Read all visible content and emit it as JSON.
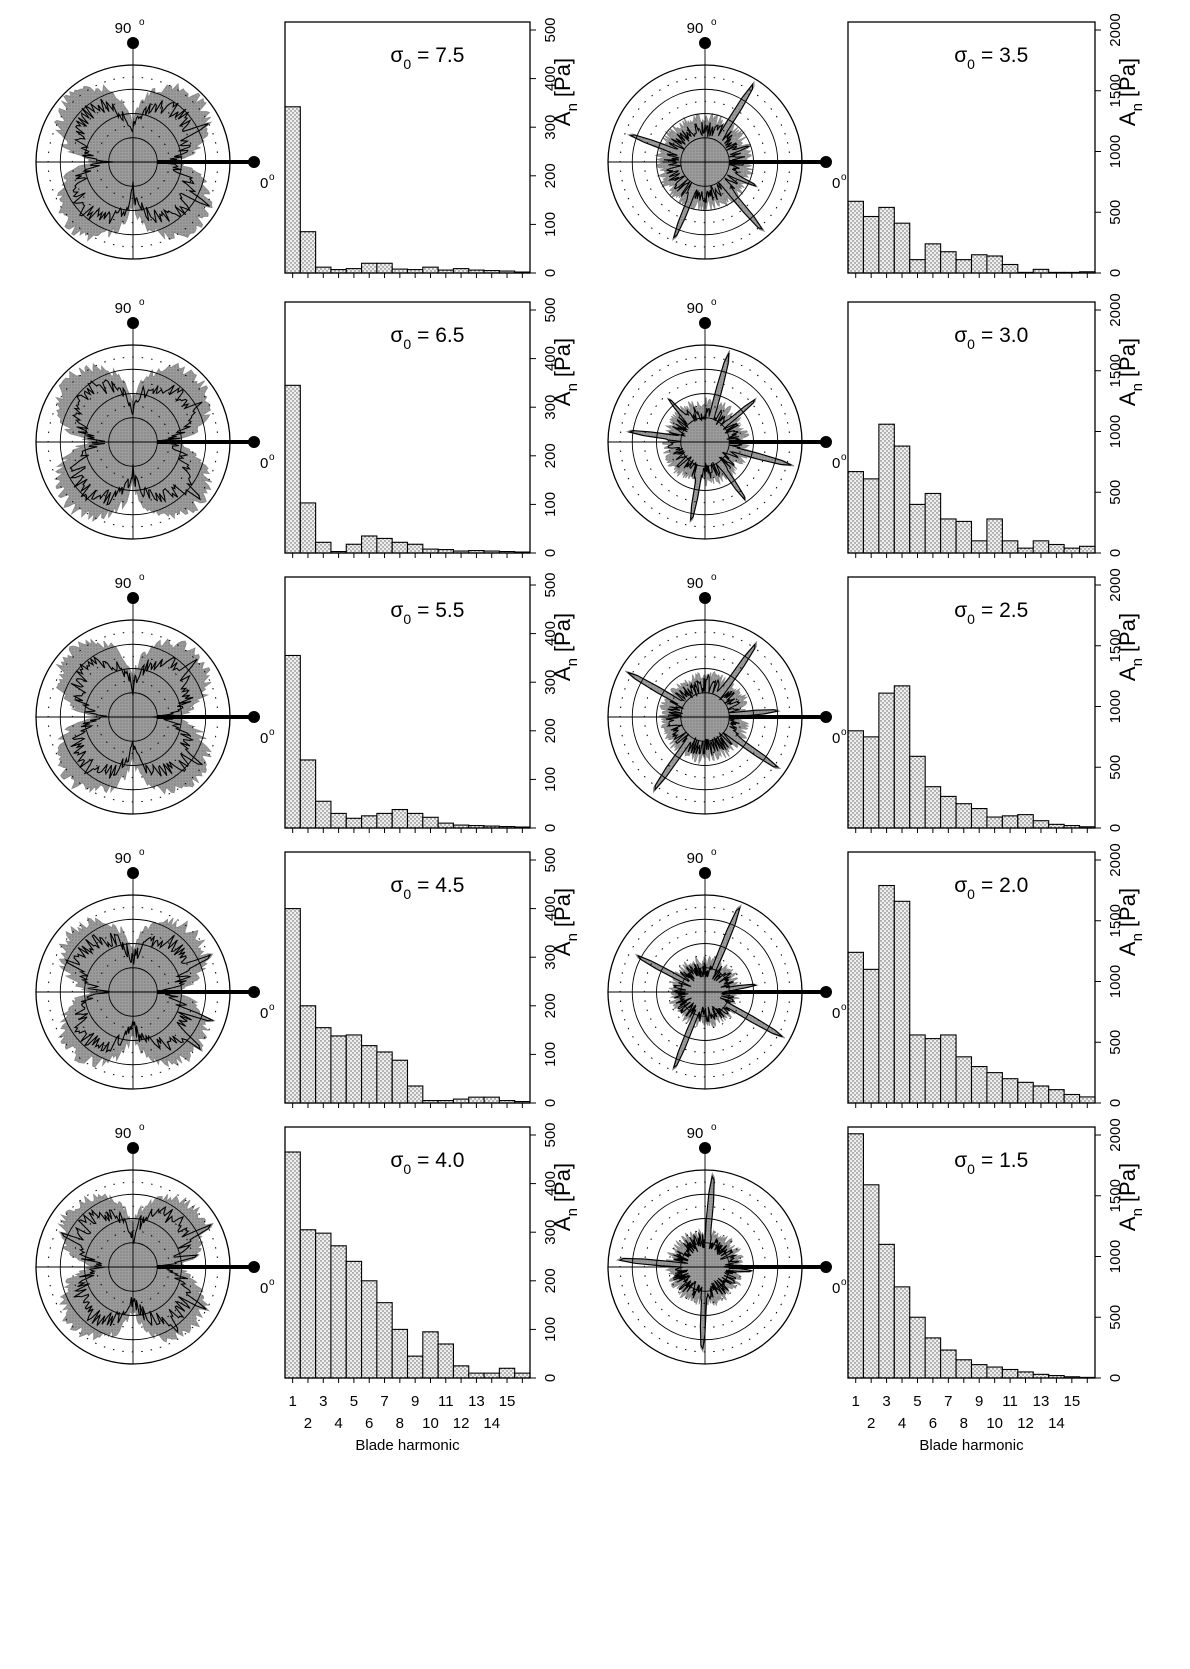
{
  "figure": {
    "xlabel": "Blade harmonic",
    "ylabel": "A",
    "ylabel_sub": "n",
    "ylabel_unit": "[Pa]",
    "polar_top_label": "90",
    "polar_right_label": "0",
    "degree_mark": "o",
    "sigma_symbol": "σ",
    "sigma_sub": "0",
    "x_ticks_odd": [
      "1",
      "3",
      "5",
      "7",
      "9",
      "11",
      "13",
      "15"
    ],
    "x_ticks_even": [
      "2",
      "4",
      "6",
      "8",
      "10",
      "12",
      "14"
    ]
  },
  "chart_data": [
    {
      "type": "bar",
      "sigma_label": "= 7.5",
      "categories": [
        1,
        2,
        3,
        4,
        5,
        6,
        7,
        8,
        9,
        10,
        11,
        12,
        13,
        14,
        15,
        16
      ],
      "values": [
        342,
        85,
        12,
        7,
        9,
        20,
        20,
        8,
        7,
        12,
        6,
        9,
        6,
        5,
        4,
        2
      ],
      "ylim": [
        0,
        500
      ],
      "yticks": [
        "0",
        "100",
        "200",
        "300",
        "400",
        "500"
      ],
      "polar": {
        "spikes": [
          [
            27,
            0.9
          ],
          [
            -30,
            0.94
          ],
          [
            118,
            0.55
          ]
        ],
        "lobe": 0.88,
        "shape": "cross"
      }
    },
    {
      "type": "bar",
      "sigma_label": "= 3.5",
      "categories": [
        1,
        2,
        3,
        4,
        5,
        6,
        7,
        8,
        9,
        10,
        11,
        12,
        13,
        14,
        15,
        16
      ],
      "values": [
        590,
        465,
        540,
        410,
        110,
        240,
        175,
        110,
        150,
        140,
        70,
        5,
        30,
        5,
        5,
        10
      ],
      "ylim": [
        0,
        2000
      ],
      "yticks": [
        "0",
        "500",
        "1000",
        "1500",
        "2000"
      ],
      "polar": {
        "spikes": [
          [
            58,
            0.98
          ],
          [
            -50,
            0.95
          ],
          [
            160,
            0.85
          ],
          [
            -112,
            0.88
          ],
          [
            -25,
            0.6
          ],
          [
            20,
            0.5
          ]
        ],
        "lobe": 0.45,
        "shape": "spiky"
      }
    },
    {
      "type": "bar",
      "sigma_label": "= 6.5",
      "categories": [
        1,
        2,
        3,
        4,
        5,
        6,
        7,
        8,
        9,
        10,
        11,
        12,
        13,
        14,
        15,
        16
      ],
      "values": [
        345,
        103,
        22,
        3,
        18,
        35,
        30,
        22,
        18,
        8,
        7,
        4,
        5,
        4,
        3,
        2
      ],
      "ylim": [
        0,
        500
      ],
      "yticks": [
        "0",
        "100",
        "200",
        "300",
        "400",
        "500"
      ],
      "polar": {
        "spikes": [
          [
            30,
            0.85
          ],
          [
            -40,
            0.95
          ],
          [
            150,
            0.7
          ]
        ],
        "lobe": 0.88,
        "shape": "cross"
      }
    },
    {
      "type": "bar",
      "sigma_label": "= 3.0",
      "categories": [
        1,
        2,
        3,
        4,
        5,
        6,
        7,
        8,
        9,
        10,
        11,
        12,
        13,
        14,
        15,
        16
      ],
      "values": [
        670,
        610,
        1060,
        880,
        400,
        490,
        280,
        260,
        100,
        280,
        100,
        40,
        100,
        70,
        40,
        55
      ],
      "ylim": [
        0,
        2000
      ],
      "yticks": [
        "0",
        "500",
        "1000",
        "1500",
        "2000"
      ],
      "polar": {
        "spikes": [
          [
            75,
            0.98
          ],
          [
            -15,
            0.95
          ],
          [
            172,
            0.82
          ],
          [
            -100,
            0.85
          ],
          [
            40,
            0.7
          ],
          [
            -55,
            0.75
          ],
          [
            130,
            0.6
          ]
        ],
        "lobe": 0.4,
        "shape": "spiky"
      }
    },
    {
      "type": "bar",
      "sigma_label": "= 5.5",
      "categories": [
        1,
        2,
        3,
        4,
        5,
        6,
        7,
        8,
        9,
        10,
        11,
        12,
        13,
        14,
        15,
        16
      ],
      "values": [
        355,
        140,
        55,
        30,
        20,
        25,
        30,
        38,
        30,
        22,
        10,
        6,
        5,
        4,
        3,
        2
      ],
      "ylim": [
        0,
        500
      ],
      "yticks": [
        "0",
        "100",
        "200",
        "300",
        "400",
        "500"
      ],
      "polar": {
        "spikes": [
          [
            42,
            0.92
          ],
          [
            -35,
            0.9
          ],
          [
            -130,
            0.8
          ]
        ],
        "lobe": 0.87,
        "shape": "cross"
      }
    },
    {
      "type": "bar",
      "sigma_label": "= 2.5",
      "categories": [
        1,
        2,
        3,
        4,
        5,
        6,
        7,
        8,
        9,
        10,
        11,
        12,
        13,
        14,
        15,
        16
      ],
      "values": [
        800,
        750,
        1110,
        1170,
        590,
        340,
        260,
        200,
        160,
        90,
        100,
        110,
        60,
        30,
        20,
        10
      ],
      "ylim": [
        0,
        2000
      ],
      "yticks": [
        "0",
        "500",
        "1000",
        "1500",
        "2000"
      ],
      "polar": {
        "spikes": [
          [
            55,
            0.95
          ],
          [
            -35,
            0.95
          ],
          [
            150,
            0.95
          ],
          [
            -125,
            0.95
          ],
          [
            5,
            0.78
          ],
          [
            85,
            0.45
          ]
        ],
        "lobe": 0.42,
        "shape": "spiky"
      }
    },
    {
      "type": "bar",
      "sigma_label": "= 4.5",
      "categories": [
        1,
        2,
        3,
        4,
        5,
        6,
        7,
        8,
        9,
        10,
        11,
        12,
        13,
        14,
        15,
        16
      ],
      "values": [
        400,
        200,
        155,
        138,
        140,
        118,
        105,
        88,
        35,
        5,
        5,
        8,
        12,
        12,
        5,
        3
      ],
      "ylim": [
        0,
        500
      ],
      "yticks": [
        "0",
        "100",
        "200",
        "300",
        "400",
        "500"
      ],
      "polar": {
        "spikes": [
          [
            25,
            0.92
          ],
          [
            -20,
            0.9
          ],
          [
            -40,
            0.95
          ],
          [
            155,
            0.8
          ]
        ],
        "lobe": 0.8,
        "shape": "cross"
      }
    },
    {
      "type": "bar",
      "sigma_label": "= 2.0",
      "categories": [
        1,
        2,
        3,
        4,
        5,
        6,
        7,
        8,
        9,
        10,
        11,
        12,
        13,
        14,
        15,
        16
      ],
      "values": [
        1240,
        1100,
        1790,
        1660,
        560,
        530,
        560,
        380,
        300,
        250,
        200,
        170,
        140,
        110,
        70,
        50
      ],
      "ylim": [
        0,
        2000
      ],
      "yticks": [
        "0",
        "500",
        "1000",
        "1500",
        "2000"
      ],
      "polar": {
        "spikes": [
          [
            68,
            0.98
          ],
          [
            -30,
            0.95
          ],
          [
            152,
            0.82
          ],
          [
            -112,
            0.88
          ],
          [
            8,
            0.55
          ]
        ],
        "lobe": 0.32,
        "shape": "spiky"
      }
    },
    {
      "type": "bar",
      "sigma_label": "= 4.0",
      "categories": [
        1,
        2,
        3,
        4,
        5,
        6,
        7,
        8,
        9,
        10,
        11,
        12,
        13,
        14,
        15,
        16
      ],
      "values": [
        465,
        305,
        298,
        272,
        240,
        200,
        155,
        100,
        45,
        95,
        70,
        25,
        10,
        10,
        20,
        10
      ],
      "ylim": [
        0,
        500
      ],
      "yticks": [
        "0",
        "100",
        "200",
        "300",
        "400",
        "500"
      ],
      "polar": {
        "spikes": [
          [
            28,
            0.95
          ],
          [
            -30,
            0.9
          ],
          [
            -55,
            0.85
          ],
          [
            155,
            0.85
          ],
          [
            10,
            0.7
          ]
        ],
        "lobe": 0.8,
        "shape": "cross"
      }
    },
    {
      "type": "bar",
      "sigma_label": "= 1.5",
      "categories": [
        1,
        2,
        3,
        4,
        5,
        6,
        7,
        8,
        9,
        10,
        11,
        12,
        13,
        14,
        15,
        16
      ],
      "values": [
        2010,
        1590,
        1100,
        750,
        500,
        330,
        230,
        150,
        110,
        90,
        70,
        50,
        30,
        20,
        10,
        5
      ],
      "ylim": [
        0,
        2000
      ],
      "yticks": [
        "0",
        "500",
        "1000",
        "1500",
        "2000"
      ],
      "polar": {
        "spikes": [
          [
            85,
            0.98
          ],
          [
            175,
            0.92
          ],
          [
            -92,
            0.88
          ],
          [
            -5,
            0.5
          ]
        ],
        "lobe": 0.35,
        "shape": "plus"
      }
    }
  ],
  "colors": {
    "fill": "#9a9a9a",
    "line": "#000000",
    "background": "#ffffff"
  }
}
